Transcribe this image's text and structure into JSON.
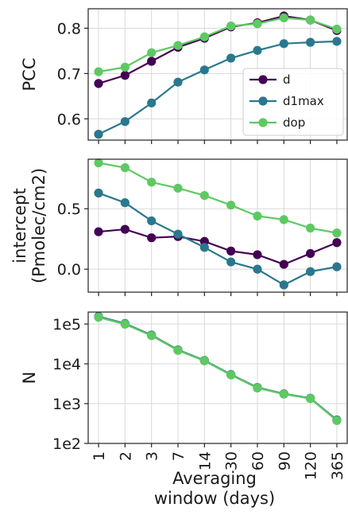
{
  "chart_data": {
    "type": "line",
    "x_categories": [
      "1",
      "2",
      "3",
      "7",
      "14",
      "30",
      "60",
      "90",
      "120",
      "365"
    ],
    "xlabel_lines": [
      "Averaging",
      "window (days)"
    ],
    "series_names": [
      "d",
      "d1max",
      "dop"
    ],
    "colors": {
      "d": "#440154",
      "d1max": "#2a788e",
      "dop": "#5ec962"
    },
    "grid": true,
    "panels": [
      {
        "id": "pcc",
        "ylabel_lines": [
          "PCC"
        ],
        "ylim": [
          0.553,
          0.843
        ],
        "yscale": "linear",
        "yticks": [
          0.6,
          0.7,
          0.8
        ],
        "ytick_labels": [
          "0.6",
          "0.7",
          "0.8"
        ],
        "legend": {
          "placement": "lower-right",
          "entries": [
            "d",
            "d1max",
            "dop"
          ]
        },
        "series": [
          {
            "name": "d",
            "values": [
              0.678,
              0.696,
              0.727,
              0.758,
              0.778,
              0.803,
              0.812,
              0.827,
              0.818,
              0.795
            ]
          },
          {
            "name": "d1max",
            "values": [
              0.566,
              0.594,
              0.635,
              0.681,
              0.708,
              0.734,
              0.751,
              0.766,
              0.769,
              0.771
            ]
          },
          {
            "name": "dop",
            "values": [
              0.704,
              0.714,
              0.746,
              0.762,
              0.781,
              0.805,
              0.81,
              0.823,
              0.818,
              0.798
            ]
          }
        ]
      },
      {
        "id": "intercept",
        "ylabel_lines": [
          "intercept",
          "(Pmolec/cm2)"
        ],
        "ylim": [
          -0.19,
          0.91
        ],
        "yscale": "linear",
        "yticks": [
          0.0,
          0.5
        ],
        "ytick_labels": [
          "0.0",
          "0.5"
        ],
        "series": [
          {
            "name": "d",
            "values": [
              0.31,
              0.33,
              0.26,
              0.27,
              0.23,
              0.15,
              0.12,
              0.04,
              0.13,
              0.22
            ]
          },
          {
            "name": "d1max",
            "values": [
              0.63,
              0.55,
              0.4,
              0.29,
              0.18,
              0.06,
              0.0,
              -0.13,
              -0.02,
              0.02
            ]
          },
          {
            "name": "dop",
            "values": [
              0.88,
              0.84,
              0.72,
              0.67,
              0.61,
              0.53,
              0.44,
              0.41,
              0.34,
              0.3
            ]
          }
        ]
      },
      {
        "id": "n",
        "ylabel_lines": [
          "N"
        ],
        "ylim": [
          100,
          200000
        ],
        "yscale": "log",
        "yticks": [
          100,
          1000,
          10000,
          100000
        ],
        "ytick_labels": [
          "1e2",
          "1e3",
          "1e4",
          "1e5"
        ],
        "series": [
          {
            "name": "d",
            "values": [
              150000,
              100000,
              52000,
              22000,
              12000,
              5300,
              2500,
              1750,
              1350,
              380
            ]
          },
          {
            "name": "d1max",
            "values": [
              155000,
              103000,
              53000,
              22500,
              12200,
              5400,
              2550,
              1770,
              1370,
              390
            ]
          },
          {
            "name": "dop",
            "values": [
              148000,
              99000,
              51000,
              21800,
              11900,
              5250,
              2480,
              1740,
              1340,
              375
            ]
          }
        ]
      }
    ]
  }
}
